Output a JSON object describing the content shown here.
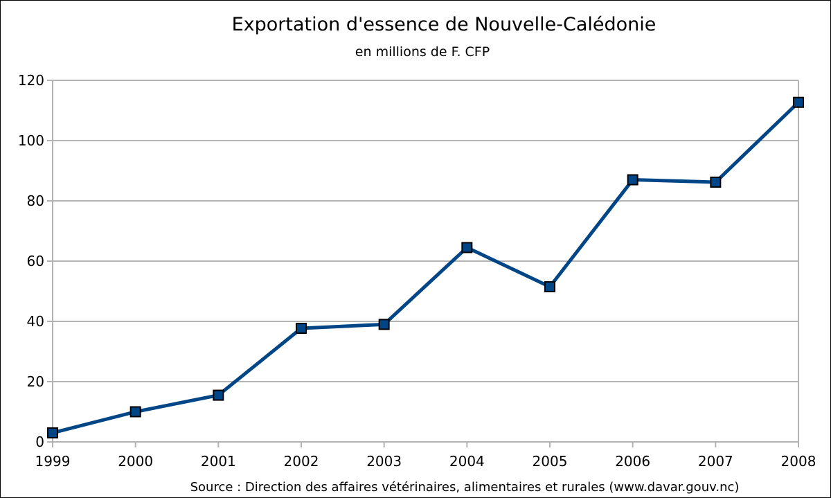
{
  "chart_data": {
    "type": "line",
    "title": "Exportation d'essence de Nouvelle-Calédonie",
    "subtitle": "en millions de F. CFP",
    "source": "Source : Direction des affaires vétérinaires, alimentaires et rurales (www.davar.gouv.nc)",
    "x": [
      "1999",
      "2000",
      "2001",
      "2002",
      "2003",
      "2004",
      "2005",
      "2006",
      "2007",
      "2008"
    ],
    "series": [
      {
        "values": [
          3,
          10,
          15.5,
          37.7,
          39,
          64.5,
          51.5,
          87,
          86.2,
          112.7
        ]
      }
    ],
    "xlabel": "",
    "ylabel": "",
    "ylim": [
      0,
      120
    ],
    "yticks": [
      0,
      20,
      40,
      60,
      80,
      100,
      120
    ],
    "grid": true,
    "legend": "none",
    "colors": {
      "line": "#004586",
      "marker_fill": "#004586",
      "marker_stroke": "#000000",
      "grid": "#b3b3b3",
      "axis": "#b3b3b3"
    }
  }
}
